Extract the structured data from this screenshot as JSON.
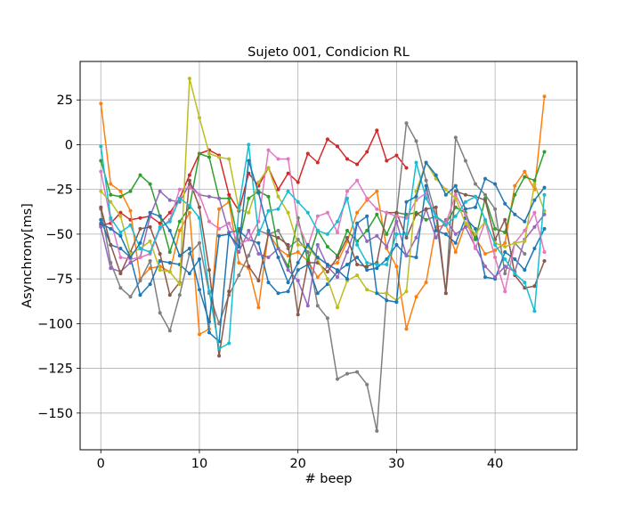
{
  "chart_data": {
    "type": "line",
    "title": "Sujeto 001, Condicion RL",
    "xlabel": "# beep",
    "ylabel": "Asynchrony[ms]",
    "xlim": [
      -2.1,
      48.3
    ],
    "ylim": [
      -170.5,
      46.5
    ],
    "xticks": [
      0,
      10,
      20,
      30,
      40
    ],
    "yticks": [
      -150,
      -125,
      -100,
      -75,
      -50,
      -25,
      0,
      25
    ],
    "xtick_labels": [
      "0",
      "10",
      "20",
      "30",
      "40"
    ],
    "ytick_labels": [
      "−150",
      "−125",
      "−100",
      "−75",
      "−50",
      "−25",
      "0",
      "25"
    ],
    "grid": true,
    "marker": "dot",
    "series": [
      {
        "color": "#d62728",
        "values": [
          -45,
          -44,
          -38,
          -42,
          -41,
          -40,
          -44,
          -38,
          -30,
          -17,
          -5,
          -3,
          -6,
          -28,
          -37,
          -16,
          -23,
          -13,
          -25,
          -16,
          -21,
          -5,
          -10,
          3,
          -1,
          -8,
          -11,
          -4,
          8,
          -9,
          -6,
          -13
        ]
      },
      {
        "color": "#ff7f0e",
        "values": [
          23,
          -22,
          -26,
          -37,
          -75,
          -69,
          -68,
          -71,
          -48,
          -38,
          -106,
          -103,
          -36,
          -32,
          -66,
          -69,
          -91,
          -49,
          -58,
          -62,
          -60,
          -65,
          -74,
          -68,
          -66,
          -54,
          -38,
          -31,
          -26,
          -58,
          -68,
          -103,
          -85,
          -77,
          -46,
          -45,
          -60,
          -44,
          -52,
          -61,
          -59,
          -55,
          -23,
          -15,
          -25,
          27
        ]
      },
      {
        "color": "#7f7f7f",
        "values": [
          -36,
          -66,
          -80,
          -85,
          -76,
          -65,
          -94,
          -104,
          -84,
          -61,
          -55,
          -83,
          -100,
          -84,
          -73,
          -62,
          -48,
          -50,
          -48,
          -58,
          -53,
          -60,
          -90,
          -97,
          -131,
          -128,
          -127,
          -134,
          -160,
          -83,
          -39,
          12,
          2,
          -20,
          -40,
          -83,
          4,
          -9,
          -22,
          -28,
          -36,
          -72,
          -55,
          -61
        ]
      },
      {
        "color": "#2ca02c",
        "values": [
          -9,
          -28,
          -29,
          -26,
          -17,
          -22,
          -40,
          -60,
          -43,
          -35,
          -5,
          -7,
          -30,
          -30,
          -55,
          -30,
          -26,
          -29,
          -58,
          -68,
          -41,
          -65,
          -48,
          -57,
          -62,
          -48,
          -54,
          -48,
          -39,
          -50,
          -38,
          -39,
          -38,
          -42,
          -40,
          -44,
          -35,
          -38,
          -53,
          -30,
          -47,
          -49,
          -28,
          -18,
          -20,
          -4
        ]
      },
      {
        "color": "#1f77b4",
        "values": [
          -42,
          -56,
          -58,
          -63,
          -84,
          -78,
          -65,
          -66,
          -67,
          -72,
          -64,
          -105,
          -110,
          -49,
          -48,
          -53,
          -55,
          -77,
          -83,
          -82,
          -70,
          -67,
          -83,
          -78,
          -71,
          -67,
          -63,
          -70,
          -69,
          -64,
          -56,
          -62,
          -63,
          -23,
          -48,
          -50,
          -55,
          -41,
          -47,
          -74,
          -75,
          -60,
          -64,
          -70,
          -58,
          -47
        ]
      },
      {
        "color": "#9467bd",
        "values": [
          -46,
          -69,
          -71,
          -66,
          -63,
          -40,
          -26,
          -31,
          -32,
          -22,
          -28,
          -29,
          -30,
          -49,
          -60,
          -48,
          -61,
          -63,
          -58,
          -70,
          -76,
          -90,
          -56,
          -68,
          -74,
          -60,
          -44,
          -54,
          -51,
          -57,
          -43,
          -62,
          -52,
          -36,
          -52,
          -42,
          -50,
          -46,
          -57,
          -68,
          -74,
          -68,
          -71,
          -53,
          -46,
          -39
        ]
      },
      {
        "color": "#8c564b",
        "values": [
          -35,
          -56,
          -72,
          -60,
          -47,
          -46,
          -61,
          -84,
          -77,
          -20,
          -35,
          -70,
          -118,
          -82,
          -47,
          -68,
          -76,
          -50,
          -52,
          -56,
          -95,
          -66,
          -66,
          -71,
          -63,
          -52,
          -67,
          -68,
          -66,
          -38,
          -38,
          -52,
          -39,
          -36,
          -35,
          -83,
          -26,
          -28,
          -29,
          -31,
          -53,
          -42,
          -73,
          -80,
          -79,
          -65
        ]
      },
      {
        "color": "#e377c2",
        "values": [
          -15,
          -42,
          -63,
          -64,
          -63,
          -61,
          -47,
          -42,
          -25,
          -24,
          -28,
          -43,
          -47,
          -44,
          -56,
          -53,
          -43,
          -3,
          -8,
          -8,
          -44,
          -57,
          -40,
          -38,
          -49,
          -26,
          -20,
          -30,
          -36,
          -38,
          -40,
          -41,
          -31,
          -27,
          -41,
          -44,
          -28,
          -39,
          -58,
          -43,
          -63,
          -82,
          -55,
          -48,
          -38,
          -60
        ]
      },
      {
        "color": "#bcbd22",
        "values": [
          -26,
          -32,
          -40,
          -61,
          -58,
          -54,
          -70,
          -71,
          -78,
          37,
          15,
          -5,
          -7,
          -8,
          -36,
          -38,
          -21,
          -13,
          -29,
          -38,
          -56,
          -57,
          -64,
          -75,
          -91,
          -76,
          -73,
          -81,
          -83,
          -83,
          -87,
          -82,
          -26,
          -10,
          -19,
          -25,
          -30,
          -44,
          -50,
          -43,
          -55,
          -57,
          -55,
          -54,
          -22,
          -37
        ]
      },
      {
        "color": "#17becf",
        "values": [
          -1,
          -41,
          -49,
          -45,
          -58,
          -60,
          -46,
          -43,
          -30,
          -34,
          -41,
          -82,
          -114,
          -111,
          -35,
          0,
          -50,
          -37,
          -36,
          -26,
          -32,
          -38,
          -48,
          -50,
          -43,
          -30,
          -56,
          -66,
          -67,
          -67,
          -50,
          -50,
          -10,
          -30,
          -40,
          -45,
          -40,
          -32,
          -29,
          -42,
          -56,
          -64,
          -72,
          -77,
          -93,
          -28
        ]
      },
      {
        "color": "#1f77b4",
        "values": [
          -44,
          -47,
          -51,
          -63,
          -55,
          -38,
          -40,
          -48,
          -62,
          -58,
          -81,
          -99,
          -51,
          -50,
          -57,
          -9,
          -27,
          -48,
          -63,
          -77,
          -66,
          -56,
          -63,
          -67,
          -70,
          -75,
          -44,
          -40,
          -83,
          -87,
          -88,
          -32,
          -29,
          -10,
          -17,
          -28,
          -23,
          -36,
          -35,
          -19,
          -22,
          -33,
          -39,
          -43,
          -31,
          -24
        ]
      }
    ]
  }
}
